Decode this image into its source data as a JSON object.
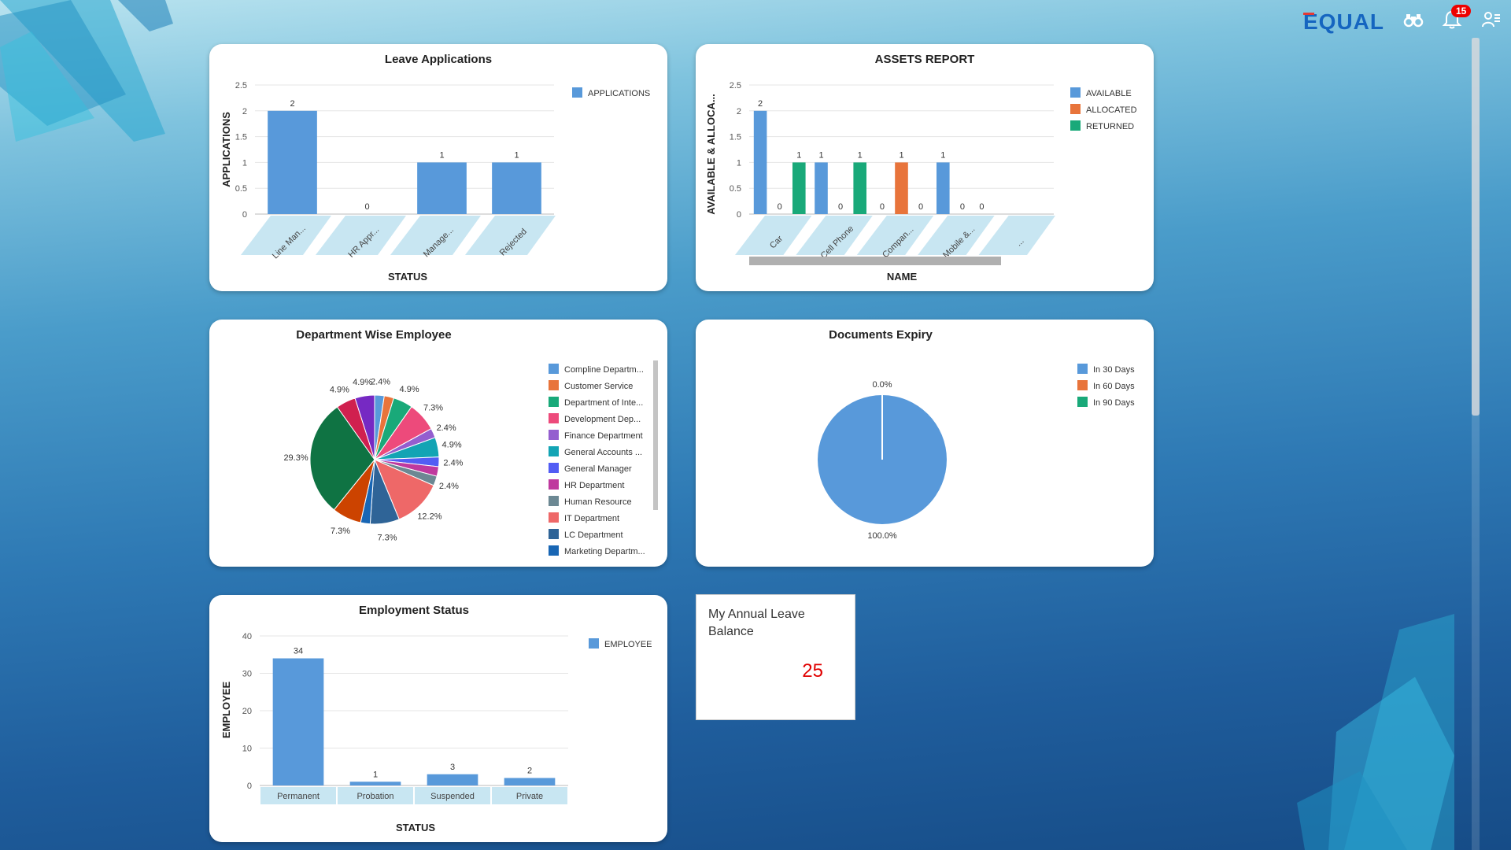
{
  "header": {
    "logo_text": "EQUAL",
    "notification_count": "15",
    "icons": [
      "binoculars-icon",
      "bell-icon",
      "user-settings-icon"
    ]
  },
  "colors": {
    "blue": "#5899da",
    "orange": "#e8743b",
    "green": "#19a979",
    "red_value": "#e00000"
  },
  "leave_applications": {
    "title": "Leave Applications",
    "chart_data": {
      "type": "bar",
      "categories": [
        "Line Man...",
        "HR Appr...",
        "Manage...",
        "Rejected"
      ],
      "series": [
        {
          "name": "APPLICATIONS",
          "values": [
            2,
            0,
            1,
            1
          ]
        }
      ],
      "xlabel": "STATUS",
      "ylabel": "APPLICATIONS",
      "ylim": [
        0,
        2.5
      ],
      "yticks": [
        "0",
        "0.5",
        "1",
        "1.5",
        "2",
        "2.5"
      ],
      "legend": "top-right"
    }
  },
  "assets_report": {
    "title": "ASSETS REPORT",
    "chart_data": {
      "type": "bar",
      "categories": [
        "Car",
        "Cell Phone",
        "Compan...",
        "Mobile &...",
        "..."
      ],
      "series": [
        {
          "name": "AVAILABLE",
          "values": [
            2,
            1,
            0,
            1,
            null
          ]
        },
        {
          "name": "ALLOCATED",
          "values": [
            0,
            0,
            1,
            0,
            null
          ]
        },
        {
          "name": "RETURNED",
          "values": [
            1,
            1,
            0,
            0,
            null
          ]
        }
      ],
      "xlabel": "NAME",
      "ylabel": "AVAILABLE & ALLOCA...",
      "ylim": [
        0,
        2.5
      ],
      "yticks": [
        "0",
        "0.5",
        "1",
        "1.5",
        "2",
        "2.5"
      ],
      "legend": "top-right"
    }
  },
  "department_wise": {
    "title": "Department Wise Employee",
    "chart_data": {
      "type": "pie",
      "legend_labels": [
        "Compline Departm...",
        "Customer Service",
        "Department of Inte...",
        "Development Dep...",
        "Finance Department",
        "General Accounts ...",
        "General Manager",
        "HR Department",
        "Human Resource",
        "IT Department",
        "LC Department",
        "Marketing Departm..."
      ],
      "slices": [
        {
          "value": 2.4,
          "label": "2.4%",
          "color": "#5899da"
        },
        {
          "value": 2.4,
          "label": "",
          "color": "#e8743b"
        },
        {
          "value": 4.9,
          "label": "4.9%",
          "color": "#19a979"
        },
        {
          "value": 7.3,
          "label": "7.3%",
          "color": "#ed4a7b"
        },
        {
          "value": 2.4,
          "label": "2.4%",
          "color": "#945ecf"
        },
        {
          "value": 4.9,
          "label": "4.9%",
          "color": "#13a4b4"
        },
        {
          "value": 2.4,
          "label": "2.4%",
          "color": "#525df4"
        },
        {
          "value": 2.4,
          "label": "",
          "color": "#bf399e"
        },
        {
          "value": 2.4,
          "label": "2.4%",
          "color": "#6c8893"
        },
        {
          "value": 12.2,
          "label": "12.2%",
          "color": "#ee6868"
        },
        {
          "value": 7.3,
          "label": "7.3%",
          "color": "#2f6497"
        },
        {
          "value": 2.4,
          "label": "",
          "color": "#1866b4"
        },
        {
          "value": 7.3,
          "label": "7.3%",
          "color": "#cc4300"
        },
        {
          "value": 29.3,
          "label": "29.3%",
          "color": "#0f7343"
        },
        {
          "value": 4.9,
          "label": "4.9%",
          "color": "#d0204f"
        },
        {
          "value": 4.9,
          "label": "4.9%",
          "color": "#7629c3"
        }
      ],
      "legend": "right"
    }
  },
  "documents_expiry": {
    "title": "Documents Expiry",
    "chart_data": {
      "type": "pie",
      "slices": [
        {
          "name": "In 30 Days",
          "value": 100.0,
          "label": "100.0%",
          "color": "#5899da"
        },
        {
          "name": "In 60 Days",
          "value": 0.0,
          "label": "0.0%",
          "color": "#e8743b"
        },
        {
          "name": "In 90 Days",
          "value": 0.0,
          "label": "",
          "color": "#19a979"
        }
      ],
      "legend": "top-right"
    }
  },
  "employment_status": {
    "title": "Employment Status",
    "chart_data": {
      "type": "bar",
      "categories": [
        "Permanent",
        "Probation",
        "Suspended",
        "Private"
      ],
      "series": [
        {
          "name": "EMPLOYEE",
          "values": [
            34,
            1,
            3,
            2
          ]
        }
      ],
      "xlabel": "STATUS",
      "ylabel": "EMPLOYEE",
      "ylim": [
        0,
        40
      ],
      "yticks": [
        "0",
        "10",
        "20",
        "30",
        "40"
      ],
      "legend": "top-right"
    }
  },
  "annual_leave": {
    "title": "My Annual Leave Balance",
    "value": "25"
  }
}
